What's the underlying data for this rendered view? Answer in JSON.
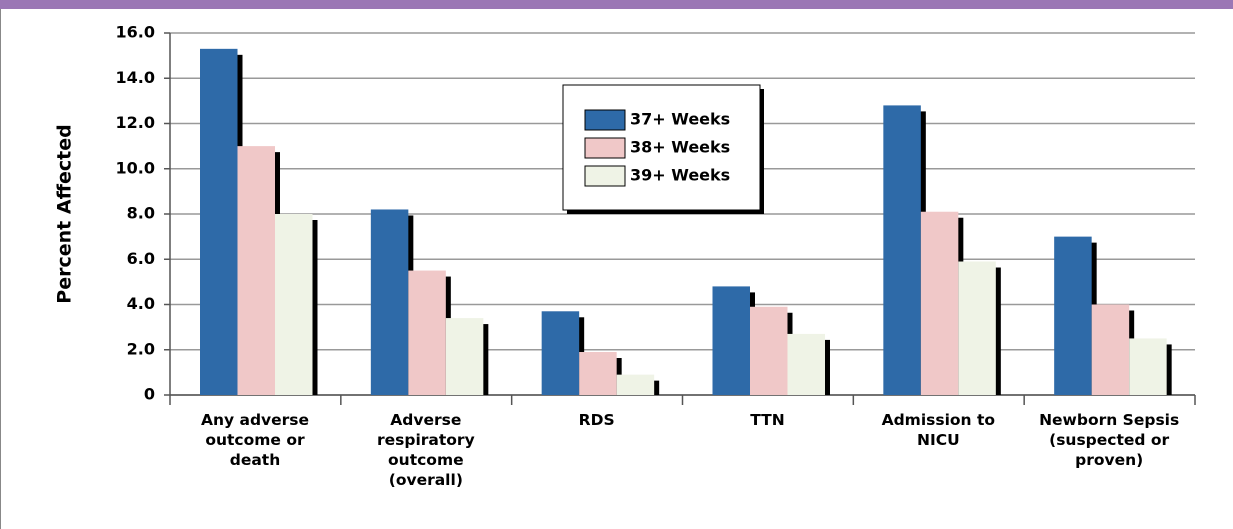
{
  "chart_data": {
    "type": "bar",
    "ylabel": "Percent Affected",
    "categories": [
      "Any adverse\noutcome or\ndeath",
      "Adverse\nrespiratory\noutcome\n(overall)",
      "RDS",
      "TTN",
      "Admission to\nNICU",
      "Newborn Sepsis\n(suspected or\nproven)"
    ],
    "series": [
      {
        "name": "37+ Weeks",
        "color": "#2e6aa8",
        "values": [
          15.3,
          8.2,
          3.7,
          4.8,
          12.8,
          7.0
        ]
      },
      {
        "name": "38+ Weeks",
        "color": "#f0c8c8",
        "values": [
          11.0,
          5.5,
          1.9,
          3.9,
          8.1,
          4.0
        ]
      },
      {
        "name": "39+ Weeks",
        "color": "#eff3e6",
        "values": [
          8.0,
          3.4,
          0.9,
          2.7,
          5.9,
          2.5
        ]
      }
    ],
    "ylim": [
      0,
      16
    ],
    "yticks": [
      0,
      {
        "value": 2,
        "label": "2.0"
      },
      {
        "value": 4,
        "label": "4.0"
      },
      {
        "value": 6,
        "label": "6.0"
      },
      {
        "value": 8,
        "label": "8.0"
      },
      {
        "value": 10,
        "label": "10.0"
      },
      {
        "value": 12,
        "label": "12.0"
      },
      {
        "value": 14,
        "label": "14.0"
      },
      {
        "value": 16,
        "label": "16.0"
      }
    ],
    "grid": true,
    "legend": "top"
  }
}
